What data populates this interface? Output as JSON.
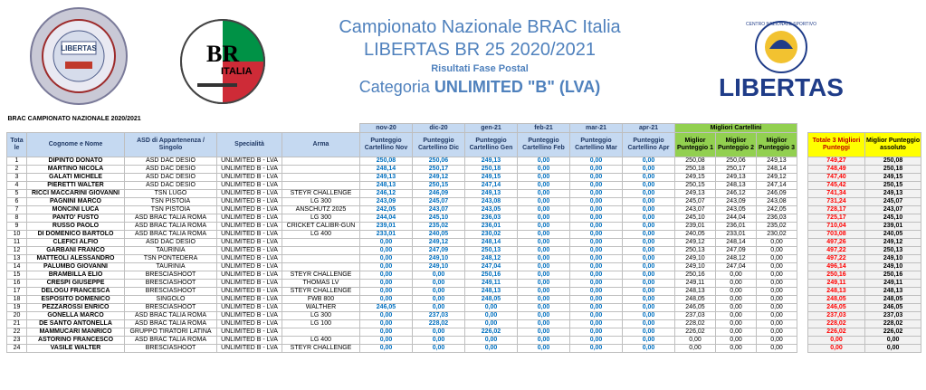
{
  "header": {
    "title_line1": "Campionato Nazionale BRAC Italia",
    "title_line2": "LIBERTAS BR 25 2020/2021",
    "subtitle": "Risultati Fase Postal",
    "category_prefix": "Categoria ",
    "category_value": "UNLIMITED \"B\" (LVA)",
    "logo1_text": "LIBERTAS",
    "logo2_text": "ITALIA",
    "logo2_initials": "BR",
    "logo3_text": "LIBERTAS",
    "logo3_ring": "CENTRO NAZIONALE SPORTIVO"
  },
  "table": {
    "caption": "BRAC CAMPIONATO NAZIONALE 2020/2021",
    "months": [
      "nov-20",
      "dic-20",
      "gen-21",
      "feb-21",
      "mar-21",
      "apr-21"
    ],
    "best_group": "Migliori Cartellini",
    "headers": {
      "rank": "Tota le",
      "name": "Cognome e Nome",
      "club": "ASD di Appartenenza / Singolo",
      "spec": "Specialità",
      "arma": "Arma",
      "months": [
        "Punteggio Cartellino Nov",
        "Punteggio Cartellino Dic",
        "Punteggio Cartellino Gen",
        "Punteggio Cartellino Feb",
        "Punteggio Cartellino Mar",
        "Punteggio Cartellino Apr"
      ],
      "best": [
        "Miglior Punteggio 1",
        "Miglior Punteggio 2",
        "Miglior Punteggio 3"
      ],
      "total": "Totale 3 Migliori Punteggi",
      "abs": "Miglior Punteggio assoluto"
    },
    "rows": [
      {
        "rank": "1",
        "name": "DIPINTO DONATO",
        "club": "ASD DAC DESIO",
        "spec": "UNLIMITED B - LVA",
        "arma": "",
        "scores": [
          "250,08",
          "250,06",
          "249,13",
          "0,00",
          "0,00",
          "0,00"
        ],
        "best": [
          "250,08",
          "250,06",
          "249,13"
        ],
        "total": "749,27",
        "abs": "250,08"
      },
      {
        "rank": "2",
        "name": "MARTINO NICOLA",
        "club": "ASD DAC DESIO",
        "spec": "UNLIMITED B - LVA",
        "arma": "",
        "scores": [
          "248,14",
          "250,17",
          "250,18",
          "0,00",
          "0,00",
          "0,00"
        ],
        "best": [
          "250,18",
          "250,17",
          "248,14"
        ],
        "total": "748,49",
        "abs": "250,18"
      },
      {
        "rank": "3",
        "name": "GALATI MICHELE",
        "club": "ASD DAC DESIO",
        "spec": "UNLIMITED B - LVA",
        "arma": "",
        "scores": [
          "249,13",
          "249,12",
          "249,15",
          "0,00",
          "0,00",
          "0,00"
        ],
        "best": [
          "249,15",
          "249,13",
          "249,12"
        ],
        "total": "747,40",
        "abs": "249,15"
      },
      {
        "rank": "4",
        "name": "PIERETTI WALTER",
        "club": "ASD DAC DESIO",
        "spec": "UNLIMITED B - LVA",
        "arma": "",
        "scores": [
          "248,13",
          "250,15",
          "247,14",
          "0,00",
          "0,00",
          "0,00"
        ],
        "best": [
          "250,15",
          "248,13",
          "247,14"
        ],
        "total": "745,42",
        "abs": "250,15"
      },
      {
        "rank": "5",
        "name": "RICCI MACCARINI GIOVANNI",
        "club": "TSN LUGO",
        "spec": "UNLIMITED B - LVA",
        "arma": "STEYR CHALLENGE",
        "scores": [
          "246,12",
          "246,09",
          "249,13",
          "0,00",
          "0,00",
          "0,00"
        ],
        "best": [
          "249,13",
          "246,12",
          "246,09"
        ],
        "total": "741,34",
        "abs": "249,13"
      },
      {
        "rank": "6",
        "name": "PAGNINI MARCO",
        "club": "TSN PISTOIA",
        "spec": "UNLIMITED B - LVA",
        "arma": "LG 300",
        "scores": [
          "243,09",
          "245,07",
          "243,08",
          "0,00",
          "0,00",
          "0,00"
        ],
        "best": [
          "245,07",
          "243,09",
          "243,08"
        ],
        "total": "731,24",
        "abs": "245,07"
      },
      {
        "rank": "7",
        "name": "MONCINI LUCA",
        "club": "TSN PISTOIA",
        "spec": "UNLIMITED B - LVA",
        "arma": "ANSCHUTZ 2025",
        "scores": [
          "242,05",
          "243,07",
          "243,05",
          "0,00",
          "0,00",
          "0,00"
        ],
        "best": [
          "243,07",
          "243,05",
          "242,05"
        ],
        "total": "728,17",
        "abs": "243,07"
      },
      {
        "rank": "8",
        "name": "PANTO' FUSTO",
        "club": "ASD BRAC TALIA ROMA",
        "spec": "UNLIMITED B - LVA",
        "arma": "LG 300",
        "scores": [
          "244,04",
          "245,10",
          "236,03",
          "0,00",
          "0,00",
          "0,00"
        ],
        "best": [
          "245,10",
          "244,04",
          "236,03"
        ],
        "total": "725,17",
        "abs": "245,10"
      },
      {
        "rank": "9",
        "name": "RUSSO PAOLO",
        "club": "ASD BRAC TALIA ROMA",
        "spec": "UNLIMITED B - LVA",
        "arma": "CRICKET CALIBR-GUN",
        "scores": [
          "239,01",
          "235,02",
          "236,01",
          "0,00",
          "0,00",
          "0,00"
        ],
        "best": [
          "239,01",
          "236,01",
          "235,02"
        ],
        "total": "710,04",
        "abs": "239,01"
      },
      {
        "rank": "10",
        "name": "DI DOMENICO BARTOLO",
        "club": "ASD BRAC TALIA ROMA",
        "spec": "UNLIMITED B - LVA",
        "arma": "LG 400",
        "scores": [
          "233,01",
          "240,05",
          "230,02",
          "0,00",
          "0,00",
          "0,00"
        ],
        "best": [
          "240,05",
          "233,01",
          "230,02"
        ],
        "total": "703,08",
        "abs": "240,05"
      },
      {
        "rank": "11",
        "name": "CLEFICI ALFIO",
        "club": "ASD DAC DESIO",
        "spec": "UNLIMITED B - LVA",
        "arma": "",
        "scores": [
          "0,00",
          "249,12",
          "248,14",
          "0,00",
          "0,00",
          "0,00"
        ],
        "best": [
          "249,12",
          "248,14",
          "0,00"
        ],
        "total": "497,26",
        "abs": "249,12"
      },
      {
        "rank": "12",
        "name": "GARBANI FRANCO",
        "club": "TAURINIA",
        "spec": "UNLIMITED B - LVA",
        "arma": "",
        "scores": [
          "0,00",
          "247,09",
          "250,13",
          "0,00",
          "0,00",
          "0,00"
        ],
        "best": [
          "250,13",
          "247,09",
          "0,00"
        ],
        "total": "497,22",
        "abs": "250,13"
      },
      {
        "rank": "13",
        "name": "MATTEOLI ALESSANDRO",
        "club": "TSN PONTEDERA",
        "spec": "UNLIMITED B - LVA",
        "arma": "",
        "scores": [
          "0,00",
          "249,10",
          "248,12",
          "0,00",
          "0,00",
          "0,00"
        ],
        "best": [
          "249,10",
          "248,12",
          "0,00"
        ],
        "total": "497,22",
        "abs": "249,10"
      },
      {
        "rank": "14",
        "name": "PALUMBO GIOVANNI",
        "club": "TAURINIA",
        "spec": "UNLIMITED B - LVA",
        "arma": "",
        "scores": [
          "0,00",
          "249,10",
          "247,04",
          "0,00",
          "0,00",
          "0,00"
        ],
        "best": [
          "249,10",
          "247,04",
          "0,00"
        ],
        "total": "496,14",
        "abs": "249,10"
      },
      {
        "rank": "15",
        "name": "BRAMBILLA ELIO",
        "club": "BRESCIASHOOT",
        "spec": "UNLIMITED B - LVA",
        "arma": "STEYR CHALLENGE",
        "scores": [
          "0,00",
          "0,00",
          "250,16",
          "0,00",
          "0,00",
          "0,00"
        ],
        "best": [
          "250,16",
          "0,00",
          "0,00"
        ],
        "total": "250,16",
        "abs": "250,16"
      },
      {
        "rank": "16",
        "name": "CRESPI GIUSEPPE",
        "club": "BRESCIASHOOT",
        "spec": "UNLIMITED B - LVA",
        "arma": "THOMAS LV",
        "scores": [
          "0,00",
          "0,00",
          "249,11",
          "0,00",
          "0,00",
          "0,00"
        ],
        "best": [
          "249,11",
          "0,00",
          "0,00"
        ],
        "total": "249,11",
        "abs": "249,11"
      },
      {
        "rank": "17",
        "name": "DELOGU FRANCESCA",
        "club": "BRESCIASHOOT",
        "spec": "UNLIMITED B - LVA",
        "arma": "STEYR CHALLENGE",
        "scores": [
          "0,00",
          "0,00",
          "248,13",
          "0,00",
          "0,00",
          "0,00"
        ],
        "best": [
          "248,13",
          "0,00",
          "0,00"
        ],
        "total": "248,13",
        "abs": "248,13"
      },
      {
        "rank": "18",
        "name": "ESPOSITO DOMENICO",
        "club": "SINGOLO",
        "spec": "UNLIMITED B - LVA",
        "arma": "FWB 800",
        "scores": [
          "0,00",
          "0,00",
          "248,05",
          "0,00",
          "0,00",
          "0,00"
        ],
        "best": [
          "248,05",
          "0,00",
          "0,00"
        ],
        "total": "248,05",
        "abs": "248,05"
      },
      {
        "rank": "19",
        "name": "PEZZAROSSI ENRICO",
        "club": "BRESCIASHOOT",
        "spec": "UNLIMITED B - LVA",
        "arma": "WALTHER",
        "scores": [
          "246,05",
          "0,00",
          "0,00",
          "0,00",
          "0,00",
          "0,00"
        ],
        "best": [
          "246,05",
          "0,00",
          "0,00"
        ],
        "total": "246,05",
        "abs": "246,05"
      },
      {
        "rank": "20",
        "name": "GONELLA MARCO",
        "club": "ASD BRAC TALIA ROMA",
        "spec": "UNLIMITED B - LVA",
        "arma": "LG 300",
        "scores": [
          "0,00",
          "237,03",
          "0,00",
          "0,00",
          "0,00",
          "0,00"
        ],
        "best": [
          "237,03",
          "0,00",
          "0,00"
        ],
        "total": "237,03",
        "abs": "237,03"
      },
      {
        "rank": "21",
        "name": "DE SANTO ANTONELLA",
        "club": "ASD BRAC TALIA ROMA",
        "spec": "UNLIMITED B - LVA",
        "arma": "LG 100",
        "scores": [
          "0,00",
          "228,02",
          "0,00",
          "0,00",
          "0,00",
          "0,00"
        ],
        "best": [
          "228,02",
          "0,00",
          "0,00"
        ],
        "total": "228,02",
        "abs": "228,02"
      },
      {
        "rank": "22",
        "name": "MAMMUCARI MANRICO",
        "club": "GRUPPO TIRATORI LATINA",
        "spec": "UNLIMITED B - LVA",
        "arma": "",
        "scores": [
          "0,00",
          "0,00",
          "226,02",
          "0,00",
          "0,00",
          "0,00"
        ],
        "best": [
          "226,02",
          "0,00",
          "0,00"
        ],
        "total": "226,02",
        "abs": "226,02"
      },
      {
        "rank": "23",
        "name": "ASTORINO FRANCESCO",
        "club": "ASD BRAC TALIA ROMA",
        "spec": "UNLIMITED B - LVA",
        "arma": "LG 400",
        "scores": [
          "0,00",
          "0,00",
          "0,00",
          "0,00",
          "0,00",
          "0,00"
        ],
        "best": [
          "0,00",
          "0,00",
          "0,00"
        ],
        "total": "0,00",
        "abs": "0,00"
      },
      {
        "rank": "24",
        "name": "VASILE WALTER",
        "club": "BRESCIASHOOT",
        "spec": "UNLIMITED B - LVA",
        "arma": "STEYR CHALLENGE",
        "scores": [
          "0,00",
          "0,00",
          "0,00",
          "0,00",
          "0,00",
          "0,00"
        ],
        "best": [
          "0,00",
          "0,00",
          "0,00"
        ],
        "total": "0,00",
        "abs": "0,00"
      }
    ]
  }
}
